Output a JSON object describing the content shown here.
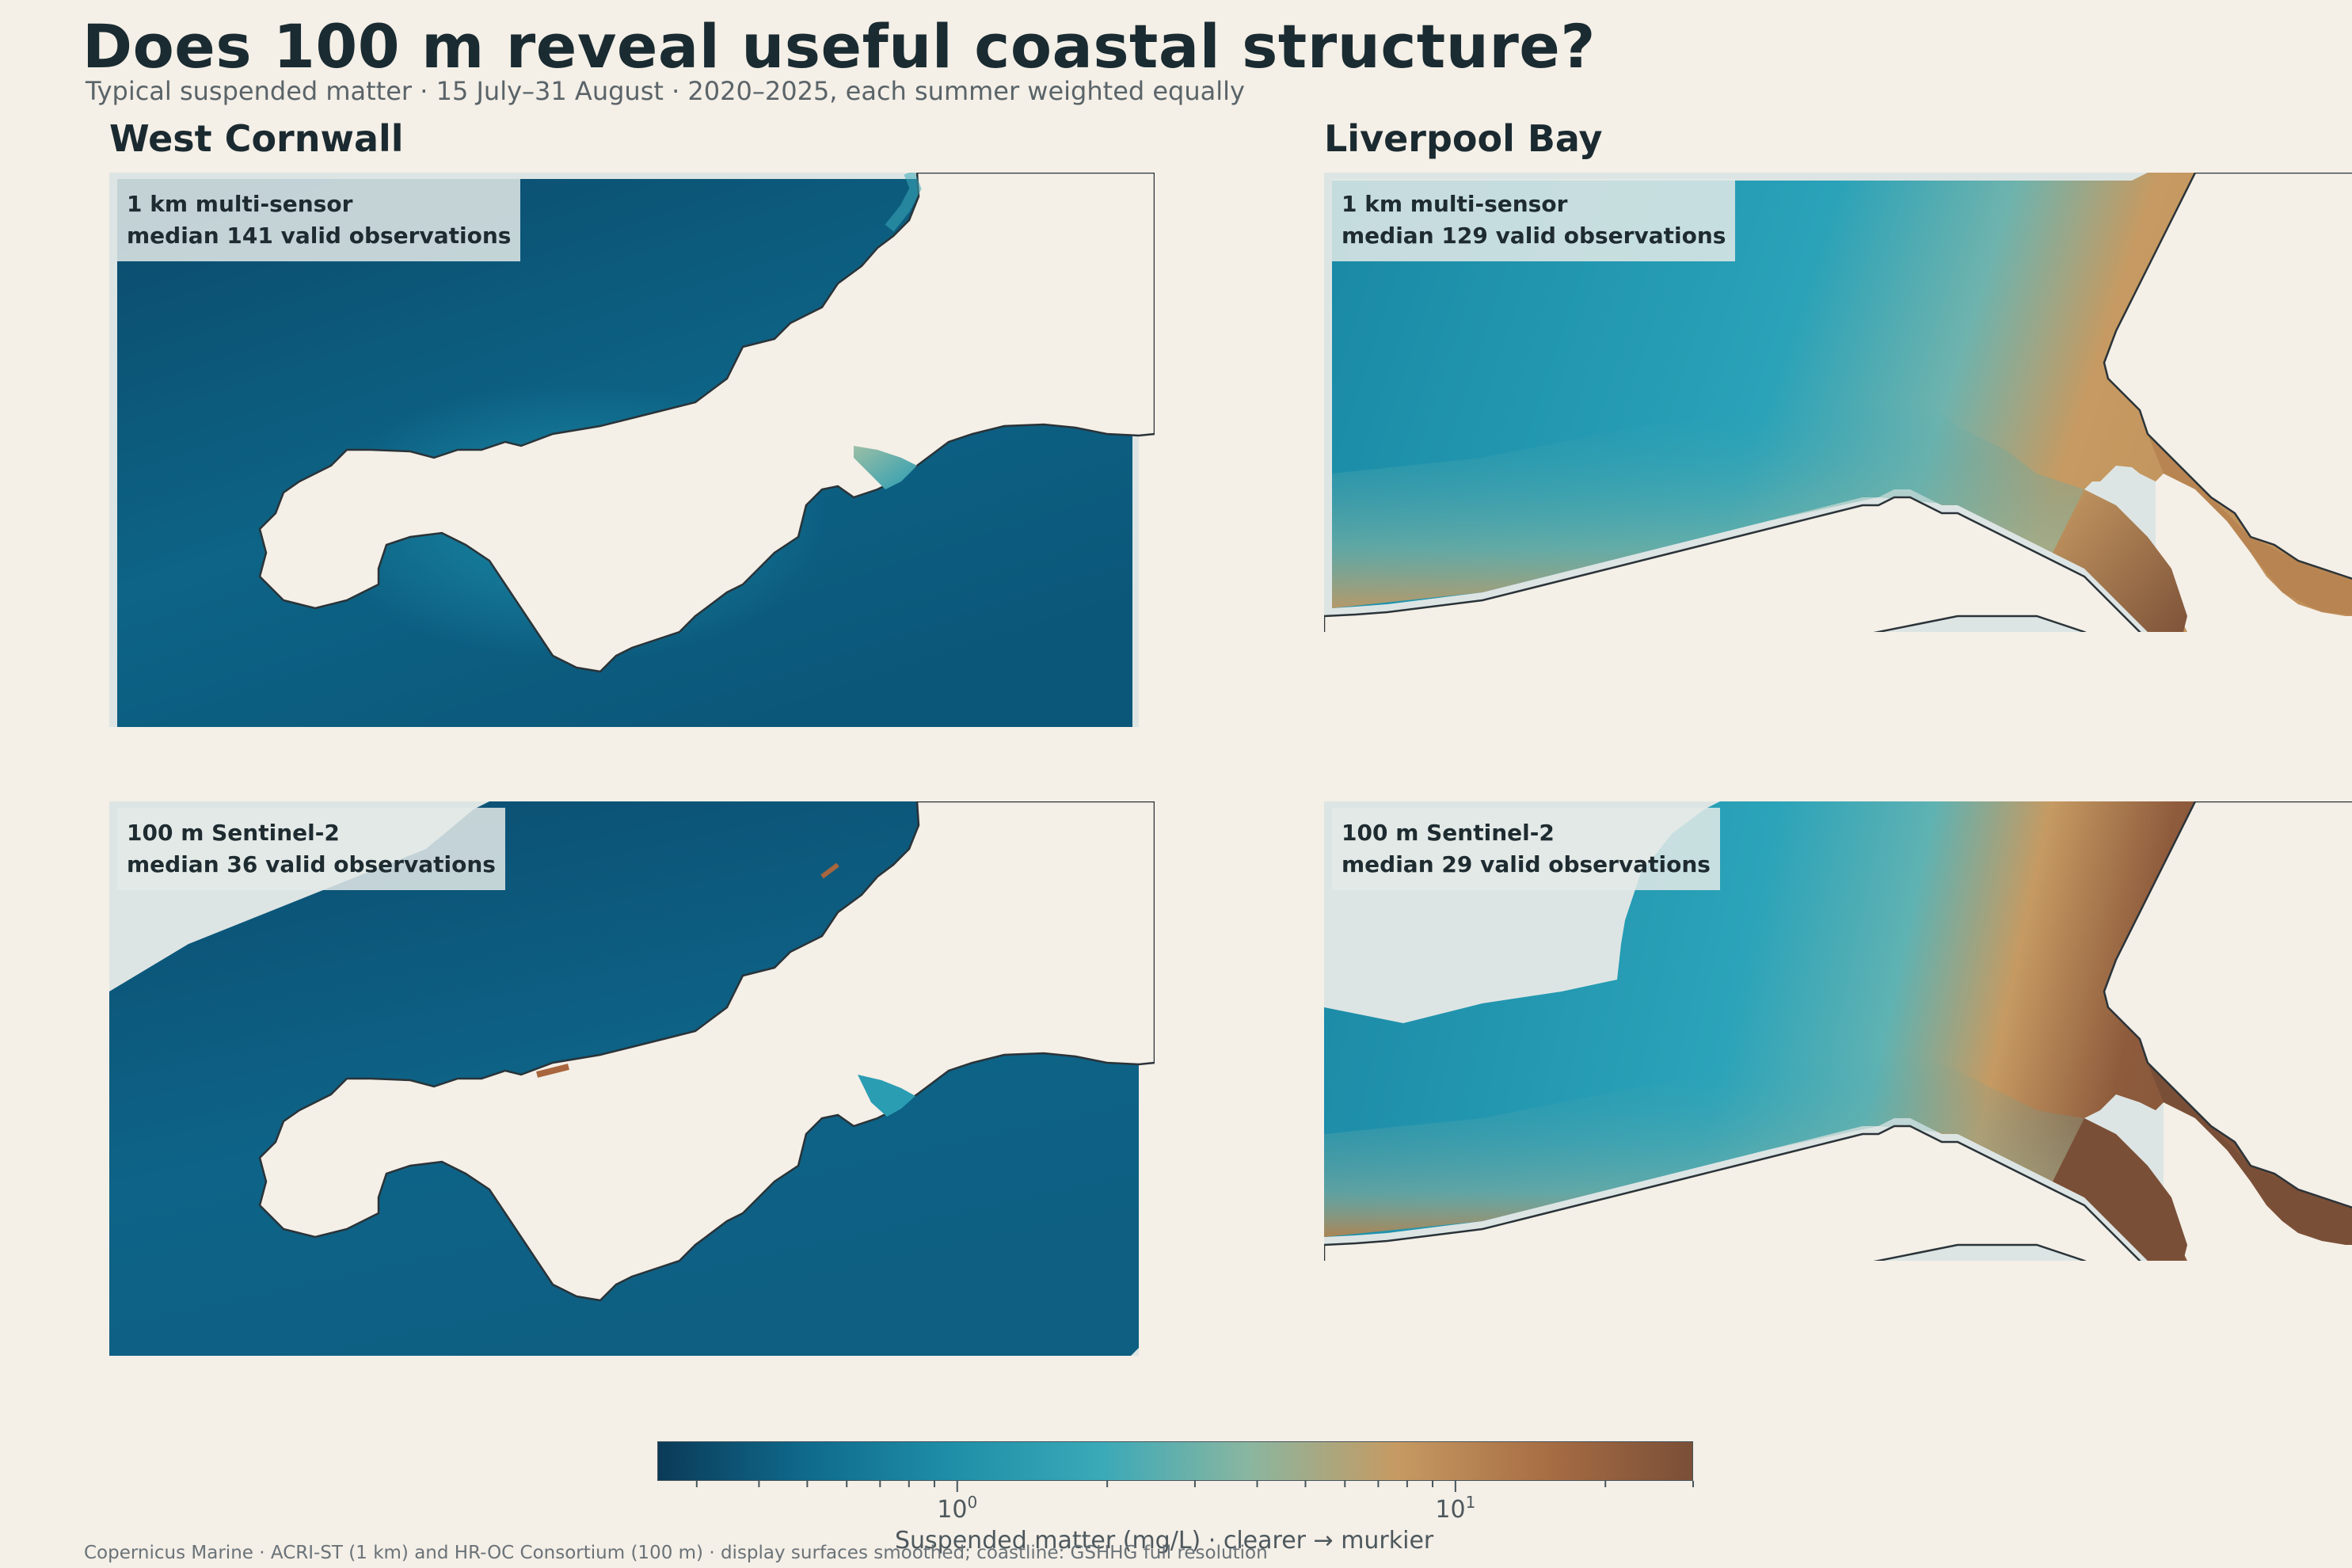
{
  "header": {
    "title": "Does 100 m reveal useful coastal structure?",
    "subtitle": "Typical suspended matter · 15 July–31 August · 2020–2025, each summer weighted equally"
  },
  "regions": [
    {
      "name": "West Cornwall"
    },
    {
      "name": "Liverpool Bay"
    }
  ],
  "panels": [
    {
      "region": "West Cornwall",
      "sensor": "1 km multi-sensor",
      "observations": "median 141 valid observations"
    },
    {
      "region": "Liverpool Bay",
      "sensor": "1 km multi-sensor",
      "observations": "median 129 valid observations"
    },
    {
      "region": "West Cornwall",
      "sensor": "100 m Sentinel-2",
      "observations": "median 36 valid observations"
    },
    {
      "region": "Liverpool Bay",
      "sensor": "100 m Sentinel-2",
      "observations": "median 29 valid observations"
    }
  ],
  "colorbar": {
    "label": "Suspended matter (mg/L) · clearer → murkier",
    "scale": "log",
    "range": [
      0.25,
      30
    ],
    "major_ticks": [
      {
        "value": 1,
        "label": "10",
        "exp": "0"
      },
      {
        "value": 10,
        "label": "10",
        "exp": "1"
      }
    ],
    "minor_ticks": [
      0.3,
      0.4,
      0.5,
      0.6,
      0.7,
      0.8,
      0.9,
      2,
      3,
      4,
      5,
      6,
      7,
      8,
      9,
      20,
      30
    ],
    "colors": [
      "#0b3a58",
      "#0f6a8c",
      "#1f8fa8",
      "#3aa9b8",
      "#8ab6a0",
      "#c69a62",
      "#a86e44",
      "#7a4f37"
    ]
  },
  "colors": {
    "background": "#f4efe7",
    "land": "#f4efe7",
    "coastline": "#2a3338",
    "no_data": "#dde5e4",
    "clear_water": "#0b3a58",
    "mid_water": "#2aa0b6",
    "turbid_water": "#c69a62",
    "very_turbid_water": "#7a4f37"
  },
  "source": "Copernicus Marine · ACRI-ST (1 km) and HR-OC Consortium (100 m) · display surfaces smoothed; coastline: GSHHG full resolution"
}
